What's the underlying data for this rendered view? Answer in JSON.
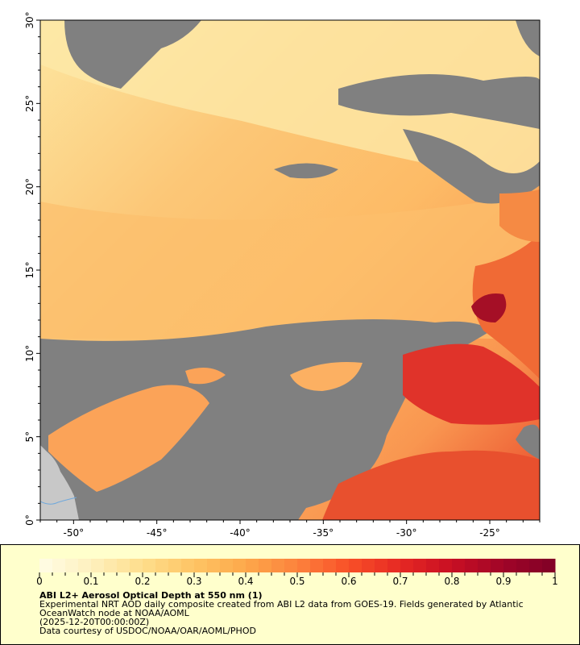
{
  "map": {
    "lat_range": [
      0,
      30
    ],
    "lon_range": [
      -52,
      -22
    ],
    "lat_ticks": [
      "0°",
      "5°",
      "10°",
      "15°",
      "20°",
      "25°",
      "30°"
    ],
    "lon_ticks": [
      "-50°",
      "-45°",
      "-40°",
      "-35°",
      "-30°",
      "-25°"
    ],
    "colors": {
      "no_data": "#808080",
      "land": "#c8c8c8",
      "river": "#6fa8dc"
    }
  },
  "legend": {
    "colorbar_ticks": [
      "0",
      "0.1",
      "0.2",
      "0.3",
      "0.4",
      "0.5",
      "0.6",
      "0.7",
      "0.8",
      "0.9",
      "1"
    ],
    "colorbar_range": [
      0,
      1
    ],
    "colormap_low": "#fffde6",
    "colormap_high": "#800026",
    "title": "ABI L2+ Aerosol Optical Depth at 550 nm (1)",
    "line1": "Experimental NRT AOD daily composite created from ABI L2 data from GOES-19. Fields generated by Atlantic",
    "line2": "OceanWatch node at NOAA/AOML",
    "line3": "(2025-12-20T00:00:00Z)",
    "line4": "Data courtesy of USDOC/NOAA/OAR/AOML/PHOD"
  }
}
